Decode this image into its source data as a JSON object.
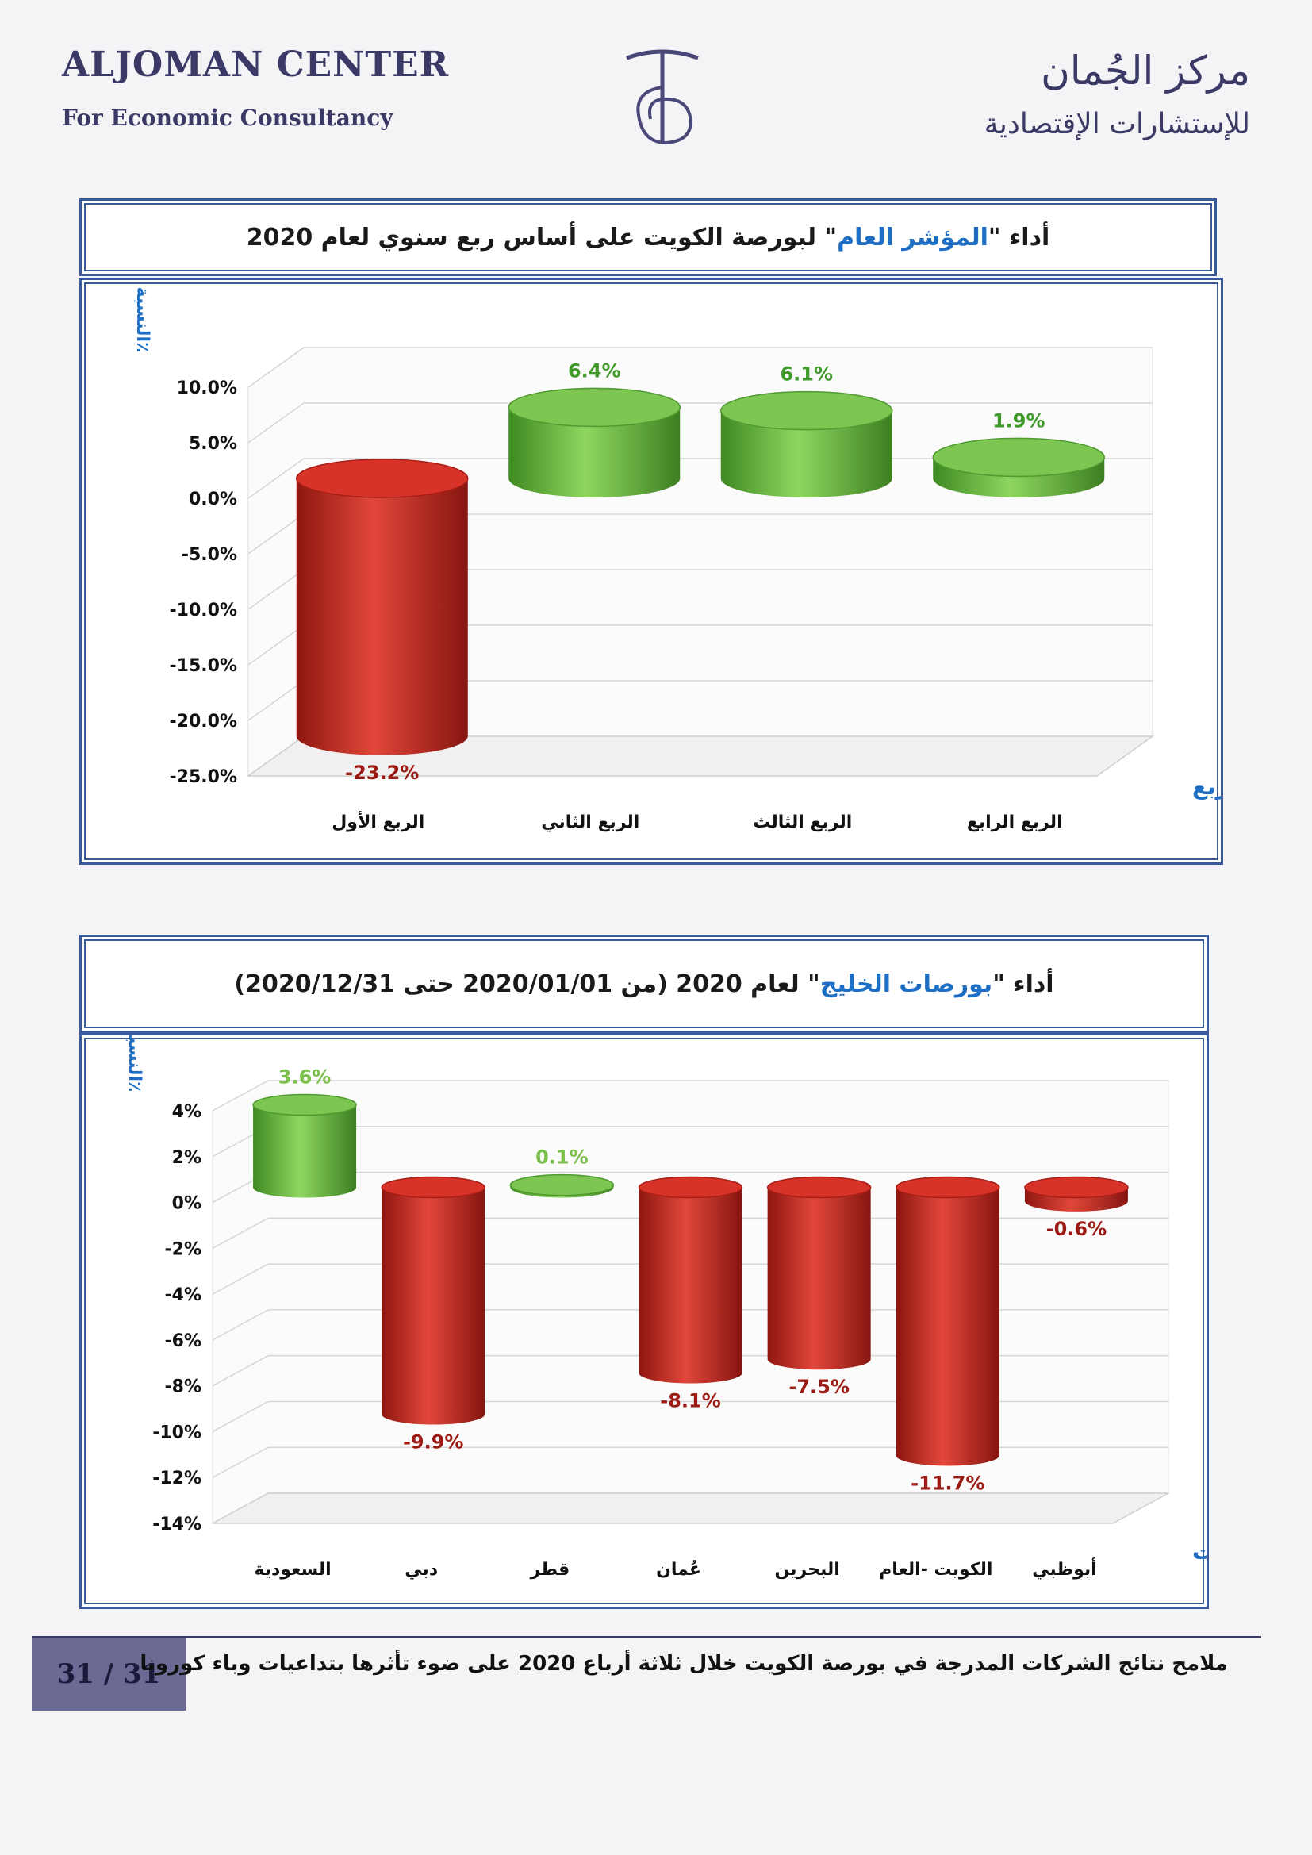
{
  "header": {
    "en_title": "ALJOMAN CENTER",
    "en_subtitle": "For Economic Consultancy",
    "ar_title": "مركز الجُمان",
    "ar_subtitle": "للإستشارات الإقتصادية",
    "logo_color": "#4a4878"
  },
  "chart1": {
    "title_prefix": "أداء \"",
    "title_highlight": "المؤشر العام",
    "title_suffix": "\" لبورصة الكويت على أساس ربع سنوي لعام 2020",
    "y_axis_title": "النسبة٪",
    "x_axis_title": "الربع"
  },
  "chart2": {
    "title_prefix": "أداء \"",
    "title_highlight": "بورصات الخليج",
    "title_suffix": "\" لعام 2020 (من 2020/01/01 حتى 2020/12/31)",
    "y_axis_title": "النسبة٪",
    "x_axis_title": "البورصات"
  },
  "chart_data": [
    {
      "type": "bar",
      "categories": [
        "الربع الأول",
        "الربع الثاني",
        "الربع الثالث",
        "الربع الرابع"
      ],
      "values": [
        -23.2,
        6.4,
        6.1,
        1.9
      ],
      "value_labels": [
        "-23.2%",
        "6.4%",
        "6.1%",
        "1.9%"
      ],
      "yticks": [
        "10.0%",
        "5.0%",
        "0.0%",
        "-5.0%",
        "-10.0%",
        "-15.0%",
        "-20.0%",
        "-25.0%"
      ],
      "ylim": [
        -25,
        10
      ],
      "grid": true,
      "colors": {
        "positive": "#5fb23d",
        "negative": "#cc2a1f",
        "positive_label": "#3f9a2a",
        "negative_label": "#9b1b14"
      }
    },
    {
      "type": "bar",
      "categories": [
        "السعودية",
        "دبي",
        "قطر",
        "عُمان",
        "البحرين",
        "الكويت -العام",
        "أبوظبي"
      ],
      "values": [
        3.6,
        -9.9,
        0.1,
        -8.1,
        -7.5,
        -11.7,
        -0.6
      ],
      "value_labels": [
        "3.6%",
        "-9.9%",
        "0.1%",
        "-8.1%",
        "-7.5%",
        "-11.7%",
        "-0.6%"
      ],
      "yticks": [
        "4%",
        "2%",
        "0%",
        "-2%",
        "-4%",
        "-6%",
        "-8%",
        "-10%",
        "-12%",
        "-14%"
      ],
      "ylim": [
        -14,
        4
      ],
      "grid": true,
      "colors": {
        "positive": "#5fb23d",
        "negative": "#cc2a1f",
        "positive_label": "#7cc04c",
        "negative_label": "#9b1b14"
      }
    }
  ],
  "footer": {
    "page": "31 / 31",
    "text": "ملامح نتائج الشركات المدرجة في بورصة الكويت خلال ثلاثة أرباع 2020 على ضوء تأثرها بتداعيات وباء كورونا"
  }
}
